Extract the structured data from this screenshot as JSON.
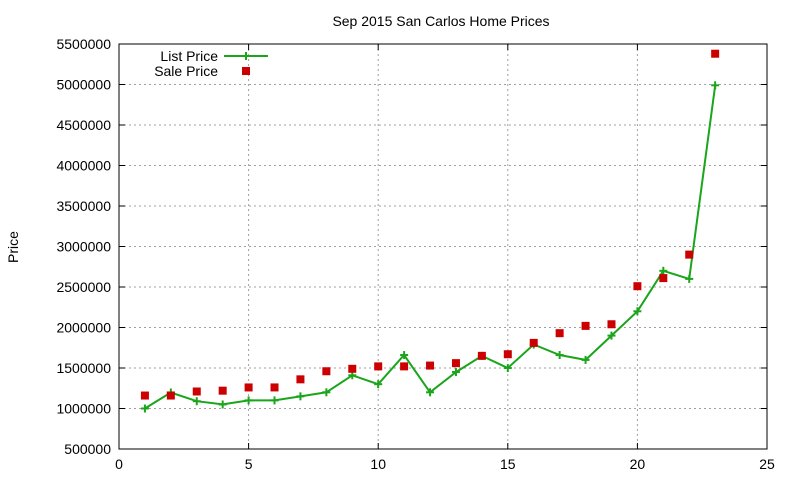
{
  "chart_data": {
    "type": "line",
    "title": "Sep 2015 San Carlos Home Prices",
    "xlabel": "",
    "ylabel": "Price",
    "xlim": [
      0,
      25
    ],
    "ylim": [
      500000,
      5500000
    ],
    "x_ticks": [
      0,
      5,
      10,
      15,
      20,
      25
    ],
    "y_ticks": [
      500000,
      1000000,
      1500000,
      2000000,
      2500000,
      3000000,
      3500000,
      4000000,
      4500000,
      5000000,
      5500000
    ],
    "grid": true,
    "legend_position": "top-left",
    "series": [
      {
        "name": "List Price",
        "style": "line-with-plus-markers",
        "color": "#1aa51a",
        "x": [
          1,
          2,
          3,
          4,
          5,
          6,
          7,
          8,
          9,
          10,
          11,
          12,
          13,
          14,
          15,
          16,
          17,
          18,
          19,
          20,
          21,
          22,
          23
        ],
        "y": [
          1000000,
          1198000,
          1090000,
          1050000,
          1100000,
          1100000,
          1150000,
          1200000,
          1410000,
          1300000,
          1660000,
          1200000,
          1450000,
          1650000,
          1500000,
          1790000,
          1660000,
          1600000,
          1900000,
          2200000,
          2700000,
          2600000,
          4990000
        ]
      },
      {
        "name": "Sale Price",
        "style": "square-markers",
        "color": "#cc0000",
        "x": [
          1,
          2,
          3,
          4,
          5,
          6,
          7,
          8,
          9,
          10,
          11,
          12,
          13,
          14,
          15,
          16,
          17,
          18,
          19,
          20,
          21,
          22,
          23
        ],
        "y": [
          1160000,
          1160000,
          1210000,
          1220000,
          1260000,
          1260000,
          1360000,
          1460000,
          1490000,
          1520000,
          1520000,
          1530000,
          1560000,
          1650000,
          1670000,
          1810000,
          1930000,
          2020000,
          2040000,
          2510000,
          2610000,
          2900000,
          5380000
        ]
      }
    ]
  }
}
